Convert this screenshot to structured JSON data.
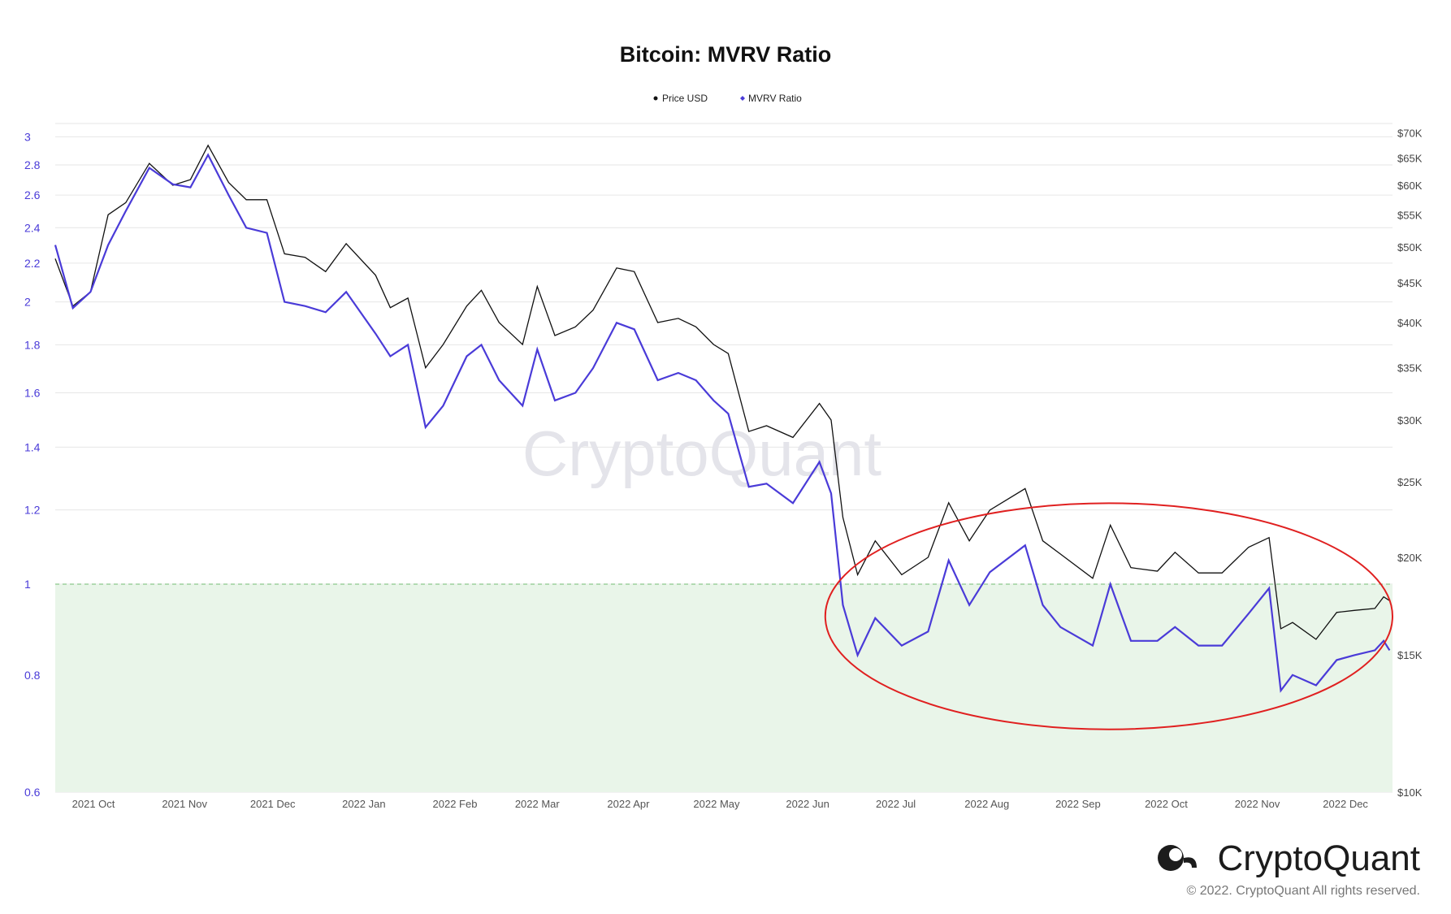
{
  "chart_data": {
    "type": "line",
    "title": "Bitcoin: MVRV Ratio",
    "legend": {
      "placement": "top-center",
      "entries": [
        "Price USD",
        "MVRV Ratio"
      ]
    },
    "colors": {
      "price": "#111111",
      "mvrv": "#4a3bd8",
      "zone_fill": "#e9f5e9",
      "zone_line": "#8cc88c",
      "highlight": "#e02020",
      "grid": "#e6e6e6"
    },
    "y_left": {
      "label": "",
      "scale": "log",
      "range": [
        0.6,
        3.1
      ],
      "ticks": [
        "3",
        "2.8",
        "2.6",
        "2.4",
        "2.2",
        "2",
        "1.8",
        "1.6",
        "1.4",
        "1.2",
        "1",
        "0.8",
        "0.6"
      ]
    },
    "y_right": {
      "label": "",
      "scale": "log",
      "unit": "USD",
      "range": [
        10000,
        72000
      ],
      "ticks": [
        "$70K",
        "$65K",
        "$60K",
        "$55K",
        "$50K",
        "$45K",
        "$40K",
        "$35K",
        "$30K",
        "$25K",
        "$20K",
        "$15K",
        "$10K"
      ]
    },
    "x_ticks": [
      "2021 Oct",
      "2021 Nov",
      "2021 Dec",
      "2022 Jan",
      "2022 Feb",
      "2022 Mar",
      "2022 Apr",
      "2022 May",
      "2022 Jun",
      "2022 Jul",
      "2022 Aug",
      "2022 Sep",
      "2022 Oct",
      "2022 Nov",
      "2022 Dec"
    ],
    "x": [
      "2021-09-18",
      "2021-09-24",
      "2021-09-30",
      "2021-10-06",
      "2021-10-12",
      "2021-10-20",
      "2021-10-28",
      "2021-11-03",
      "2021-11-09",
      "2021-11-16",
      "2021-11-22",
      "2021-11-29",
      "2021-12-05",
      "2021-12-12",
      "2021-12-19",
      "2021-12-26",
      "2022-01-05",
      "2022-01-10",
      "2022-01-16",
      "2022-01-22",
      "2022-01-28",
      "2022-02-05",
      "2022-02-10",
      "2022-02-16",
      "2022-02-24",
      "2022-03-01",
      "2022-03-07",
      "2022-03-14",
      "2022-03-20",
      "2022-03-28",
      "2022-04-03",
      "2022-04-11",
      "2022-04-18",
      "2022-04-24",
      "2022-04-30",
      "2022-05-05",
      "2022-05-12",
      "2022-05-18",
      "2022-05-27",
      "2022-06-05",
      "2022-06-09",
      "2022-06-13",
      "2022-06-18",
      "2022-06-24",
      "2022-07-03",
      "2022-07-12",
      "2022-07-19",
      "2022-07-26",
      "2022-08-02",
      "2022-08-14",
      "2022-08-20",
      "2022-08-26",
      "2022-09-06",
      "2022-09-12",
      "2022-09-19",
      "2022-09-28",
      "2022-10-04",
      "2022-10-12",
      "2022-10-20",
      "2022-10-29",
      "2022-11-05",
      "2022-11-09",
      "2022-11-13",
      "2022-11-21",
      "2022-11-28",
      "2022-12-04",
      "2022-12-11",
      "2022-12-14",
      "2022-12-16"
    ],
    "series": [
      {
        "name": "Price USD",
        "axis": "right",
        "values": [
          48300,
          42000,
          43800,
          55000,
          57000,
          64000,
          60000,
          61000,
          67500,
          60500,
          57500,
          57500,
          49000,
          48500,
          46500,
          50500,
          46000,
          41800,
          43000,
          35000,
          37500,
          42000,
          44000,
          40000,
          37500,
          44500,
          38500,
          39500,
          41500,
          47000,
          46500,
          40000,
          40500,
          39500,
          37500,
          36500,
          29000,
          29500,
          28500,
          31500,
          30000,
          22500,
          19000,
          21000,
          19000,
          20000,
          23500,
          21000,
          23000,
          24500,
          21000,
          20200,
          18800,
          22000,
          19400,
          19200,
          20300,
          19100,
          19100,
          20600,
          21200,
          16200,
          16500,
          15700,
          17000,
          17100,
          17200,
          17800,
          17600
        ]
      },
      {
        "name": "MVRV Ratio",
        "axis": "left",
        "values": [
          2.3,
          1.97,
          2.05,
          2.3,
          2.5,
          2.78,
          2.67,
          2.65,
          2.87,
          2.6,
          2.4,
          2.37,
          2.0,
          1.98,
          1.95,
          2.05,
          1.85,
          1.75,
          1.8,
          1.47,
          1.55,
          1.75,
          1.8,
          1.65,
          1.55,
          1.78,
          1.57,
          1.6,
          1.7,
          1.9,
          1.87,
          1.65,
          1.68,
          1.65,
          1.57,
          1.52,
          1.27,
          1.28,
          1.22,
          1.35,
          1.25,
          0.95,
          0.84,
          0.92,
          0.86,
          0.89,
          1.06,
          0.95,
          1.03,
          1.1,
          0.95,
          0.9,
          0.86,
          1.0,
          0.87,
          0.87,
          0.9,
          0.86,
          0.86,
          0.93,
          0.99,
          0.77,
          0.8,
          0.78,
          0.83,
          0.84,
          0.85,
          0.87,
          0.85
        ]
      }
    ],
    "annotations": [
      {
        "type": "horizontal_line",
        "axis": "left",
        "value": 1,
        "style": "dashed"
      },
      {
        "type": "shaded_zone",
        "axis": "left",
        "from": 0.6,
        "to": 1
      },
      {
        "type": "ellipse",
        "label": "",
        "from_date": "2022-06-07",
        "to_date": "2022-12-17",
        "from_value": 0.7,
        "to_value": 1.22
      }
    ],
    "grid": true,
    "watermark": "CryptoQuant"
  },
  "branding": {
    "name": "CryptoQuant",
    "copyright": "© 2022. CryptoQuant All rights reserved."
  }
}
